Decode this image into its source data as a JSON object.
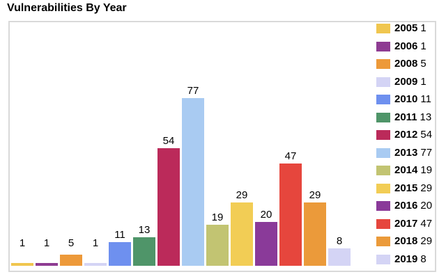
{
  "title": "Vulnerabilities By Year",
  "chart_data": {
    "type": "bar",
    "title": "Vulnerabilities By Year",
    "categories": [
      "2005",
      "2006",
      "2008",
      "2009",
      "2010",
      "2011",
      "2012",
      "2013",
      "2014",
      "2015",
      "2016",
      "2017",
      "2018",
      "2019"
    ],
    "values": [
      1,
      1,
      5,
      1,
      11,
      13,
      54,
      77,
      19,
      29,
      20,
      47,
      29,
      8
    ],
    "colors": [
      "#f0c64f",
      "#8e3c92",
      "#ed9939",
      "#d4d4f5",
      "#6e90ef",
      "#4f9569",
      "#bb2a5a",
      "#a9cbf2",
      "#c2c472",
      "#f2cd55",
      "#8a3a99",
      "#e6463d",
      "#eb9a3a",
      "#d4d4f5"
    ],
    "bar_labels": true,
    "xlabel": "",
    "ylabel": "",
    "ylim": [
      0,
      112
    ],
    "grid": false,
    "legend_position": "right",
    "legend_entries": [
      {
        "label": "2005",
        "value": "1"
      },
      {
        "label": "2006",
        "value": "1"
      },
      {
        "label": "2008",
        "value": "5"
      },
      {
        "label": "2009",
        "value": "1"
      },
      {
        "label": "2010",
        "value": "11"
      },
      {
        "label": "2011",
        "value": "13"
      },
      {
        "label": "2012",
        "value": "54"
      },
      {
        "label": "2013",
        "value": "77"
      },
      {
        "label": "2014",
        "value": "19"
      },
      {
        "label": "2015",
        "value": "29"
      },
      {
        "label": "2016",
        "value": "20"
      },
      {
        "label": "2017",
        "value": "47"
      },
      {
        "label": "2018",
        "value": "29"
      },
      {
        "label": "2019",
        "value": "8"
      }
    ]
  },
  "styles": {
    "panel_border_color": "#d9d9d9",
    "background_color": "#ffffff",
    "text_color": "#000000"
  }
}
